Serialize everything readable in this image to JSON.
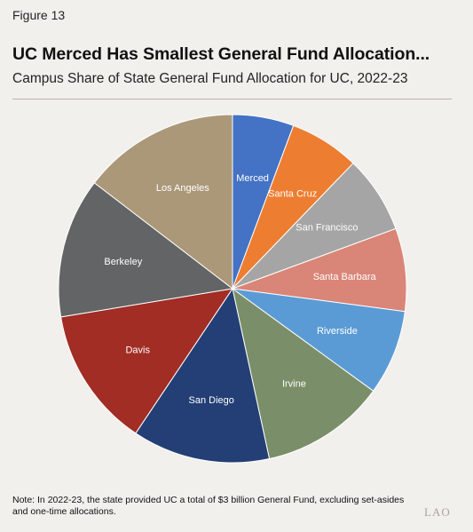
{
  "figure_label": "Figure 13",
  "title": "UC Merced Has Smallest General Fund Allocation...",
  "subtitle": "Campus Share of State General Fund Allocation for UC, 2022-23",
  "note": "Note: In 2022-23, the state provided UC a total of $3 billion General Fund, excluding set-asides and one-time allocations.",
  "logo": "LAO",
  "chart_data": {
    "type": "pie",
    "start": "12 o'clock, clockwise",
    "slices": [
      {
        "label": "Merced",
        "value": 5.7,
        "color": "#4472c4"
      },
      {
        "label": "Santa Cruz",
        "value": 6.5,
        "color": "#ed7d31"
      },
      {
        "label": "San Francisco",
        "value": 7.2,
        "color": "#a5a5a5"
      },
      {
        "label": "Santa Barbara",
        "value": 7.7,
        "color": "#d98578"
      },
      {
        "label": "Riverside",
        "value": 7.9,
        "color": "#5b9bd5"
      },
      {
        "label": "Irvine",
        "value": 11.6,
        "color": "#7a8f69"
      },
      {
        "label": "San Diego",
        "value": 12.8,
        "color": "#233f75"
      },
      {
        "label": "Davis",
        "value": 13.0,
        "color": "#a12d25"
      },
      {
        "label": "Berkeley",
        "value": 13.0,
        "color": "#636466"
      },
      {
        "label": "Los Angeles",
        "value": 14.6,
        "color": "#ab9878"
      }
    ]
  }
}
